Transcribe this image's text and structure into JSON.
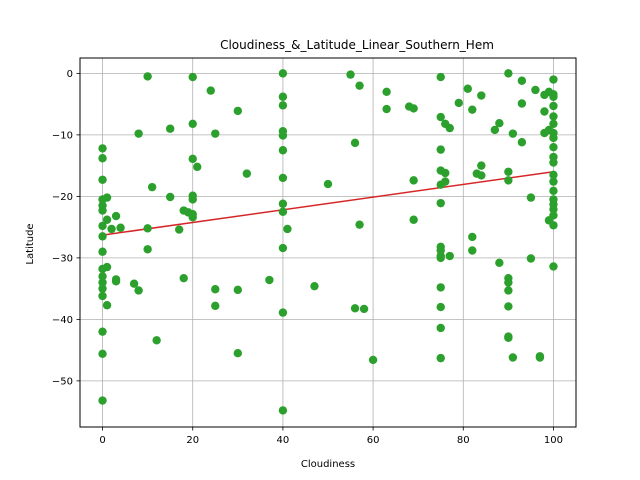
{
  "chart_data": {
    "type": "scatter",
    "title": "Cloudiness_&_Latitude_Linear_Southern_Hem",
    "xlabel": "Cloudiness",
    "ylabel": "Latitude",
    "xlim": [
      -5,
      105
    ],
    "ylim": [
      -57.5,
      2.5
    ],
    "xticks": [
      0,
      20,
      40,
      60,
      80,
      100
    ],
    "yticks": [
      0,
      -10,
      -20,
      -30,
      -40,
      -50
    ],
    "grid": true,
    "point_color": "#2ca02c",
    "line_color": "#d62728",
    "regression_line": {
      "x": [
        0,
        100
      ],
      "y": [
        -26.3,
        -16.0
      ]
    },
    "points": [
      [
        0,
        -12.2
      ],
      [
        0,
        -13.8
      ],
      [
        0,
        -17.3
      ],
      [
        0,
        -20.5
      ],
      [
        0,
        -21.5
      ],
      [
        0,
        -22.3
      ],
      [
        0,
        -24.8
      ],
      [
        0,
        -26.5
      ],
      [
        0,
        -29.0
      ],
      [
        0,
        -31.8
      ],
      [
        0,
        -33.0
      ],
      [
        0,
        -34.0
      ],
      [
        0,
        -35.0
      ],
      [
        0,
        -36.2
      ],
      [
        0,
        -42.0
      ],
      [
        0,
        -45.6
      ],
      [
        0,
        -53.2
      ],
      [
        1,
        -20.2
      ],
      [
        1,
        -23.8
      ],
      [
        1,
        -31.5
      ],
      [
        1,
        -37.7
      ],
      [
        2,
        -25.3
      ],
      [
        3,
        -23.2
      ],
      [
        3,
        -33.5
      ],
      [
        3,
        -33.8
      ],
      [
        4,
        -25.1
      ],
      [
        7,
        -34.2
      ],
      [
        8,
        -9.8
      ],
      [
        8,
        -35.3
      ],
      [
        10,
        -0.5
      ],
      [
        10,
        -25.2
      ],
      [
        10,
        -28.6
      ],
      [
        11,
        -18.5
      ],
      [
        12,
        -43.4
      ],
      [
        15,
        -9.0
      ],
      [
        15,
        -20.1
      ],
      [
        17,
        -25.4
      ],
      [
        18,
        -22.3
      ],
      [
        18,
        -33.3
      ],
      [
        19,
        -22.6
      ],
      [
        20,
        -0.6
      ],
      [
        20,
        -8.2
      ],
      [
        20,
        -13.9
      ],
      [
        20,
        -19.9
      ],
      [
        20,
        -20.5
      ],
      [
        20,
        -22.9
      ],
      [
        20,
        -23.4
      ],
      [
        21,
        -15.2
      ],
      [
        24,
        -2.8
      ],
      [
        25,
        -9.8
      ],
      [
        25,
        -35.1
      ],
      [
        25,
        -37.8
      ],
      [
        30,
        -6.1
      ],
      [
        30,
        -35.2
      ],
      [
        30,
        -45.5
      ],
      [
        32,
        -16.3
      ],
      [
        37,
        -33.6
      ],
      [
        40,
        0.0
      ],
      [
        40,
        -3.8
      ],
      [
        40,
        -5.2
      ],
      [
        40,
        -9.4
      ],
      [
        40,
        -10.1
      ],
      [
        40,
        -12.5
      ],
      [
        40,
        -17.0
      ],
      [
        40,
        -21.2
      ],
      [
        40,
        -22.5
      ],
      [
        40,
        -28.4
      ],
      [
        40,
        -38.9
      ],
      [
        40,
        -54.8
      ],
      [
        41,
        -25.3
      ],
      [
        47,
        -34.6
      ],
      [
        50,
        -18.0
      ],
      [
        55,
        -0.2
      ],
      [
        56,
        -11.3
      ],
      [
        56,
        -38.2
      ],
      [
        57,
        -2.0
      ],
      [
        57,
        -24.6
      ],
      [
        58,
        -38.3
      ],
      [
        60,
        -46.6
      ],
      [
        63,
        -3.0
      ],
      [
        63,
        -5.8
      ],
      [
        68,
        -5.4
      ],
      [
        69,
        -5.7
      ],
      [
        69,
        -17.4
      ],
      [
        69,
        -23.8
      ],
      [
        75,
        -0.6
      ],
      [
        75,
        -7.1
      ],
      [
        75,
        -12.4
      ],
      [
        75,
        -15.8
      ],
      [
        75,
        -18.1
      ],
      [
        75,
        -21.1
      ],
      [
        75,
        -28.2
      ],
      [
        75,
        -28.8
      ],
      [
        75,
        -29.7
      ],
      [
        75,
        -30.0
      ],
      [
        75,
        -34.8
      ],
      [
        75,
        -38.0
      ],
      [
        75,
        -41.4
      ],
      [
        75,
        -46.3
      ],
      [
        76,
        -8.2
      ],
      [
        76,
        -16.2
      ],
      [
        76,
        -17.6
      ],
      [
        77,
        -8.9
      ],
      [
        77,
        -29.7
      ],
      [
        79,
        -4.8
      ],
      [
        81,
        -2.5
      ],
      [
        82,
        -5.9
      ],
      [
        82,
        -26.6
      ],
      [
        82,
        -28.8
      ],
      [
        83,
        -16.3
      ],
      [
        84,
        -3.6
      ],
      [
        84,
        -15.0
      ],
      [
        84,
        -16.6
      ],
      [
        87,
        -9.2
      ],
      [
        88,
        -8.1
      ],
      [
        88,
        -30.8
      ],
      [
        90,
        0.0
      ],
      [
        90,
        -16.0
      ],
      [
        90,
        -17.4
      ],
      [
        90,
        -33.3
      ],
      [
        90,
        -34.0
      ],
      [
        90,
        -35.3
      ],
      [
        90,
        -37.9
      ],
      [
        90,
        -42.8
      ],
      [
        90,
        -43.0
      ],
      [
        91,
        -9.8
      ],
      [
        91,
        -46.2
      ],
      [
        93,
        -1.2
      ],
      [
        93,
        -4.9
      ],
      [
        93,
        -11.2
      ],
      [
        95,
        -20.2
      ],
      [
        95,
        -30.1
      ],
      [
        96,
        -2.7
      ],
      [
        97,
        -46.0
      ],
      [
        97,
        -46.2
      ],
      [
        98,
        -3.5
      ],
      [
        98,
        -6.2
      ],
      [
        98,
        -9.7
      ],
      [
        99,
        -3.0
      ],
      [
        99,
        -9.2
      ],
      [
        99,
        -23.9
      ],
      [
        100,
        -1.0
      ],
      [
        100,
        -3.4
      ],
      [
        100,
        -3.8
      ],
      [
        100,
        -5.3
      ],
      [
        100,
        -7.0
      ],
      [
        100,
        -8.2
      ],
      [
        100,
        -9.7
      ],
      [
        100,
        -10.5
      ],
      [
        100,
        -12.0
      ],
      [
        100,
        -13.6
      ],
      [
        100,
        -14.5
      ],
      [
        100,
        -16.5
      ],
      [
        100,
        -17.6
      ],
      [
        100,
        -19.1
      ],
      [
        100,
        -20.5
      ],
      [
        100,
        -21.3
      ],
      [
        100,
        -22.1
      ],
      [
        100,
        -23.1
      ],
      [
        100,
        -24.7
      ],
      [
        100,
        -31.4
      ]
    ]
  }
}
